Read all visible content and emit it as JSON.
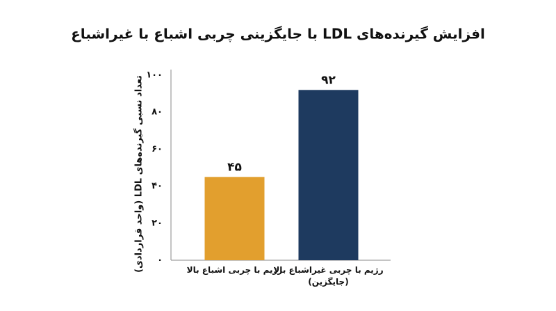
{
  "chart_data": {
    "type": "bar",
    "title": "افزایش گیرنده‌های LDL با جایگزینی چربی اشباع با غیراشباع",
    "y_label": "تعداد نسبی گیرنده‌های LDL (واحد قراردادی)",
    "categories": [
      "رژیم با چربی اشباع بالا",
      "رژیم با چربی غیراشباع بالا (جایگزین)"
    ],
    "series": [
      {
        "colors": [
          "#E29F2E",
          "#1E3A5F"
        ],
        "values": [
          45,
          92
        ],
        "value_labels": [
          "۴۵",
          "۹۲"
        ]
      }
    ],
    "ylim": [
      0,
      100
    ],
    "yticks": [
      {
        "value": 0,
        "label": "۰"
      },
      {
        "value": 20,
        "label": "۲۰"
      },
      {
        "value": 40,
        "label": "۴۰"
      },
      {
        "value": 60,
        "label": "۶۰"
      },
      {
        "value": 80,
        "label": "۸۰"
      },
      {
        "value": 100,
        "label": "۱۰۰"
      }
    ],
    "grid": false
  }
}
